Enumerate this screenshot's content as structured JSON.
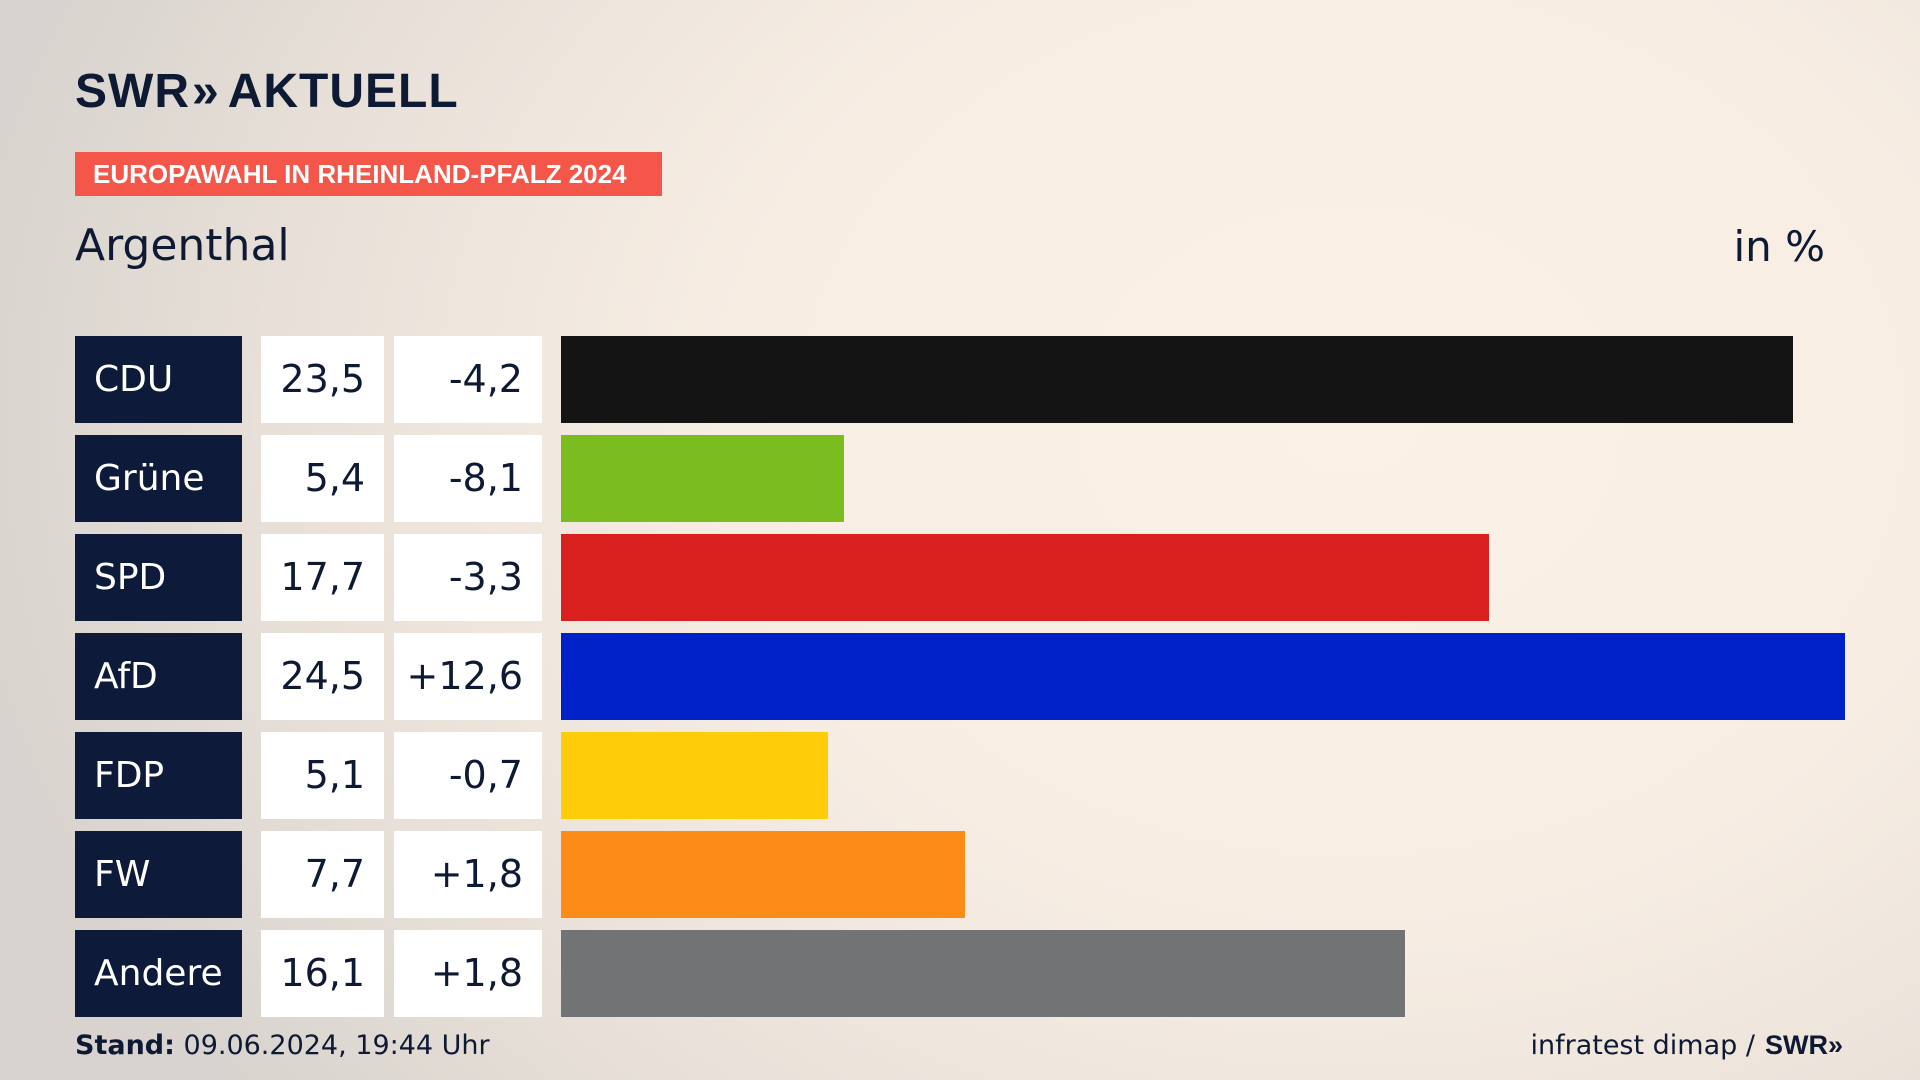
{
  "header": {
    "brand_swr": "SWR",
    "brand_aktuell": "AKTUELL",
    "brand_chevron": "»",
    "banner": "EUROPAWAHL IN RHEINLAND-PFALZ 2024",
    "place": "Argenthal",
    "unit": "in %"
  },
  "colors": {
    "navy": "#0e1a3a",
    "banner": "#f4574a"
  },
  "chart_data": {
    "type": "bar",
    "title": "Argenthal",
    "unit": "in %",
    "categories": [
      "CDU",
      "Grüne",
      "SPD",
      "AfD",
      "FDP",
      "FW",
      "Andere"
    ],
    "values": [
      23.5,
      5.4,
      17.7,
      24.5,
      5.1,
      7.7,
      16.1
    ],
    "value_labels": [
      "23,5",
      "5,4",
      "17,7",
      "24,5",
      "5,1",
      "7,7",
      "16,1"
    ],
    "diff_labels": [
      "-4,2",
      "-8,1",
      "-3,3",
      "+12,6",
      "-0,7",
      "+1,8",
      "+1,8"
    ],
    "colors": [
      "#141414",
      "#7bbd1e",
      "#d8201f",
      "#0020c8",
      "#ffcc0a",
      "#fd8b17",
      "#727374"
    ],
    "xlim": [
      0,
      24.5
    ]
  },
  "footer": {
    "stand_label": "Stand:",
    "stand_value": "09.06.2024, 19:44 Uhr",
    "source": "infratest dimap /",
    "source_brand": "SWR»"
  }
}
